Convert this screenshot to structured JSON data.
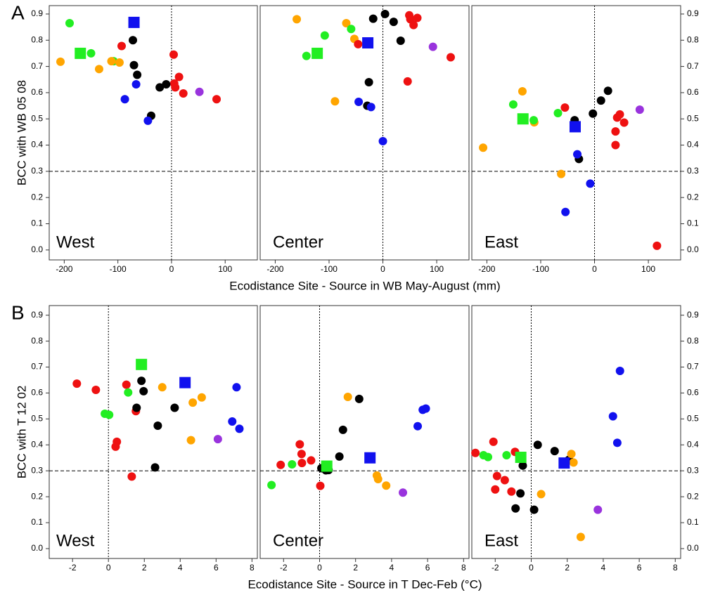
{
  "rows": [
    {
      "label": "A",
      "y_label": "BCC with WB 05 08",
      "x_label": "Ecodistance Site - Source in WB May-August (mm)"
    },
    {
      "label": "B",
      "y_label": "BCC with T 12 02",
      "x_label": "Ecodistance Site - Source in T Dec-Feb (°C)"
    }
  ],
  "chart_data": [
    {
      "type": "scatter",
      "title": "West",
      "xlim": [
        -228,
        160
      ],
      "ylim": [
        -0.038,
        0.932
      ],
      "xticks": [
        -200,
        -100,
        0,
        100
      ],
      "yticks": [
        {
          "value": 0,
          "label": "0.0"
        },
        0.1,
        0.2,
        0.3,
        0.4,
        0.5,
        0.6,
        0.7,
        0.8,
        0.9
      ],
      "hline": 0.3,
      "vline": 0,
      "series": [
        {
          "color": "#22ee22",
          "marker": "circle",
          "x": [
            -190,
            -150,
            -108
          ],
          "y": [
            0.865,
            0.75,
            0.72
          ]
        },
        {
          "color": "#ffa500",
          "marker": "circle",
          "x": [
            -207,
            -135,
            -112,
            -97
          ],
          "y": [
            0.718,
            0.69,
            0.72,
            0.715
          ]
        },
        {
          "color": "#ee1111",
          "marker": "circle",
          "x": [
            -93,
            4,
            5,
            7,
            14,
            22,
            84
          ],
          "y": [
            0.778,
            0.745,
            0.635,
            0.62,
            0.66,
            0.597,
            0.575
          ]
        },
        {
          "color": "#000000",
          "marker": "circle",
          "x": [
            -72,
            -70,
            -64,
            -22,
            -10,
            -38
          ],
          "y": [
            0.8,
            0.705,
            0.668,
            0.62,
            0.632,
            0.512
          ]
        },
        {
          "color": "#1111ee",
          "marker": "circle",
          "x": [
            -66,
            -87,
            -44
          ],
          "y": [
            0.632,
            0.575,
            0.493
          ]
        },
        {
          "color": "#9933dd",
          "marker": "circle",
          "x": [
            52
          ],
          "y": [
            0.603
          ]
        },
        {
          "color": "#22ee22",
          "marker": "square",
          "x": [
            -170
          ],
          "y": [
            0.75
          ]
        },
        {
          "color": "#1111ee",
          "marker": "square",
          "x": [
            -70
          ],
          "y": [
            0.868
          ]
        }
      ]
    },
    {
      "type": "scatter",
      "title": "Center",
      "xlim": [
        -228,
        160
      ],
      "ylim": [
        -0.038,
        0.932
      ],
      "xticks": [
        -200,
        -100,
        0,
        100
      ],
      "hline": 0.3,
      "vline": 0,
      "series": [
        {
          "color": "#ffa500",
          "marker": "circle",
          "x": [
            -160,
            -68,
            -53,
            -89
          ],
          "y": [
            0.88,
            0.865,
            0.805,
            0.567
          ]
        },
        {
          "color": "#22ee22",
          "marker": "circle",
          "x": [
            -142,
            -108,
            -59
          ],
          "y": [
            0.74,
            0.818,
            0.843
          ]
        },
        {
          "color": "#ee1111",
          "marker": "circle",
          "x": [
            -46,
            49,
            51,
            57,
            64,
            46,
            126
          ],
          "y": [
            0.785,
            0.895,
            0.88,
            0.858,
            0.885,
            0.643,
            0.735
          ]
        },
        {
          "color": "#000000",
          "marker": "circle",
          "x": [
            4,
            -18,
            20,
            33,
            -26,
            -29
          ],
          "y": [
            0.9,
            0.882,
            0.87,
            0.798,
            0.64,
            0.55
          ]
        },
        {
          "color": "#1111ee",
          "marker": "circle",
          "x": [
            -45,
            -22,
            0
          ],
          "y": [
            0.565,
            0.545,
            0.415
          ]
        },
        {
          "color": "#9933dd",
          "marker": "circle",
          "x": [
            93
          ],
          "y": [
            0.775
          ]
        },
        {
          "color": "#22ee22",
          "marker": "square",
          "x": [
            -122
          ],
          "y": [
            0.75
          ]
        },
        {
          "color": "#1111ee",
          "marker": "square",
          "x": [
            -28
          ],
          "y": [
            0.79
          ]
        }
      ]
    },
    {
      "type": "scatter",
      "title": "East",
      "xlim": [
        -228,
        160
      ],
      "ylim": [
        -0.038,
        0.932
      ],
      "xticks": [
        -200,
        -100,
        0,
        100
      ],
      "yticks": [
        {
          "value": 0,
          "label": "0.0"
        },
        0.1,
        0.2,
        0.3,
        0.4,
        0.5,
        0.6,
        0.7,
        0.8,
        0.9
      ],
      "hline": 0.3,
      "vline": 0,
      "series": [
        {
          "color": "#ffa500",
          "marker": "circle",
          "x": [
            -207,
            -134,
            -112,
            -62
          ],
          "y": [
            0.39,
            0.605,
            0.487,
            0.29
          ]
        },
        {
          "color": "#22ee22",
          "marker": "circle",
          "x": [
            -151,
            -68,
            -113
          ],
          "y": [
            0.555,
            0.522,
            0.495
          ]
        },
        {
          "color": "#ee1111",
          "marker": "circle",
          "x": [
            -55,
            39,
            42,
            47,
            55,
            39,
            116
          ],
          "y": [
            0.543,
            0.452,
            0.505,
            0.517,
            0.486,
            0.4,
            0.016
          ]
        },
        {
          "color": "#000000",
          "marker": "circle",
          "x": [
            -37,
            -3,
            12,
            25,
            -29
          ],
          "y": [
            0.495,
            0.52,
            0.57,
            0.607,
            0.347
          ]
        },
        {
          "color": "#1111ee",
          "marker": "circle",
          "x": [
            -32,
            -8,
            -54
          ],
          "y": [
            0.365,
            0.253,
            0.145
          ]
        },
        {
          "color": "#9933dd",
          "marker": "circle",
          "x": [
            84
          ],
          "y": [
            0.535
          ]
        },
        {
          "color": "#22ee22",
          "marker": "square",
          "x": [
            -133
          ],
          "y": [
            0.5
          ]
        },
        {
          "color": "#1111ee",
          "marker": "square",
          "x": [
            -36
          ],
          "y": [
            0.47
          ]
        }
      ]
    },
    {
      "type": "scatter",
      "title": "West",
      "xlim": [
        -3.3,
        8.3
      ],
      "ylim": [
        -0.038,
        0.937
      ],
      "xticks": [
        -2,
        0,
        2,
        4,
        6,
        8
      ],
      "yticks": [
        {
          "value": 0,
          "label": "0.0"
        },
        0.1,
        0.2,
        0.3,
        0.4,
        0.5,
        0.6,
        0.7,
        0.8,
        0.9
      ],
      "hline": 0.3,
      "vline": 0,
      "series": [
        {
          "color": "#ee1111",
          "marker": "circle",
          "x": [
            -1.76,
            -0.7,
            1.0,
            1.53,
            0.47,
            0.4,
            1.3
          ],
          "y": [
            0.636,
            0.612,
            0.632,
            0.53,
            0.412,
            0.393,
            0.278
          ]
        },
        {
          "color": "#22ee22",
          "marker": "circle",
          "x": [
            -0.2,
            0.04,
            1.1
          ],
          "y": [
            0.52,
            0.516,
            0.602
          ]
        },
        {
          "color": "#000000",
          "marker": "circle",
          "x": [
            1.84,
            1.96,
            1.57,
            3.69,
            2.75,
            2.6
          ],
          "y": [
            0.647,
            0.607,
            0.543,
            0.543,
            0.474,
            0.313
          ]
        },
        {
          "color": "#ffa500",
          "marker": "circle",
          "x": [
            3.0,
            5.2,
            4.7,
            4.6
          ],
          "y": [
            0.622,
            0.583,
            0.563,
            0.418
          ]
        },
        {
          "color": "#1111ee",
          "marker": "circle",
          "x": [
            7.14,
            7.3,
            6.9
          ],
          "y": [
            0.622,
            0.462,
            0.49
          ]
        },
        {
          "color": "#9933dd",
          "marker": "circle",
          "x": [
            6.1
          ],
          "y": [
            0.422
          ]
        },
        {
          "color": "#22ee22",
          "marker": "square",
          "x": [
            1.84
          ],
          "y": [
            0.71
          ]
        },
        {
          "color": "#1111ee",
          "marker": "square",
          "x": [
            4.27
          ],
          "y": [
            0.64
          ]
        }
      ]
    },
    {
      "type": "scatter",
      "title": "Center",
      "xlim": [
        -3.3,
        8.3
      ],
      "ylim": [
        -0.038,
        0.937
      ],
      "xticks": [
        -2,
        0,
        2,
        4,
        6,
        8
      ],
      "hline": 0.3,
      "vline": 0,
      "series": [
        {
          "color": "#ee1111",
          "marker": "circle",
          "x": [
            -2.16,
            -1.1,
            -1.0,
            -0.98,
            -0.47,
            0.04
          ],
          "y": [
            0.323,
            0.402,
            0.365,
            0.33,
            0.34,
            0.242
          ]
        },
        {
          "color": "#22ee22",
          "marker": "circle",
          "x": [
            -1.53,
            -2.67
          ],
          "y": [
            0.325,
            0.245
          ]
        },
        {
          "color": "#000000",
          "marker": "circle",
          "x": [
            0.1,
            0.35,
            0.5,
            1.1,
            1.3,
            2.2
          ],
          "y": [
            0.31,
            0.302,
            0.303,
            0.355,
            0.458,
            0.577
          ]
        },
        {
          "color": "#ffa500",
          "marker": "circle",
          "x": [
            1.57,
            3.18,
            3.25,
            3.7
          ],
          "y": [
            0.585,
            0.282,
            0.268,
            0.243
          ]
        },
        {
          "color": "#1111ee",
          "marker": "circle",
          "x": [
            5.45,
            5.73,
            5.9
          ],
          "y": [
            0.472,
            0.535,
            0.54
          ]
        },
        {
          "color": "#9933dd",
          "marker": "circle",
          "x": [
            4.63
          ],
          "y": [
            0.216
          ]
        },
        {
          "color": "#22ee22",
          "marker": "square",
          "x": [
            0.4
          ],
          "y": [
            0.318
          ]
        },
        {
          "color": "#1111ee",
          "marker": "square",
          "x": [
            2.8
          ],
          "y": [
            0.35
          ]
        }
      ]
    },
    {
      "type": "scatter",
      "title": "East",
      "xlim": [
        -3.3,
        8.3
      ],
      "ylim": [
        -0.038,
        0.937
      ],
      "xticks": [
        -2,
        0,
        2,
        4,
        6,
        8
      ],
      "yticks": [
        {
          "value": 0,
          "label": "0.0"
        },
        0.1,
        0.2,
        0.3,
        0.4,
        0.5,
        0.6,
        0.7,
        0.8,
        0.9
      ],
      "hline": 0.3,
      "vline": 0,
      "series": [
        {
          "color": "#ee1111",
          "marker": "circle",
          "x": [
            -3.1,
            -2.1,
            -1.9,
            -2.0,
            -1.47,
            -1.1,
            -0.9
          ],
          "y": [
            0.369,
            0.412,
            0.28,
            0.228,
            0.264,
            0.22,
            0.373
          ]
        },
        {
          "color": "#22ee22",
          "marker": "circle",
          "x": [
            -2.65,
            -2.4,
            -1.37
          ],
          "y": [
            0.36,
            0.353,
            0.36
          ]
        },
        {
          "color": "#000000",
          "marker": "circle",
          "x": [
            -0.47,
            0.36,
            1.3,
            -0.87,
            -0.6,
            0.16,
            2.1
          ],
          "y": [
            0.32,
            0.4,
            0.376,
            0.155,
            0.213,
            0.15,
            0.343
          ]
        },
        {
          "color": "#ffa500",
          "marker": "circle",
          "x": [
            2.23,
            2.35,
            0.55,
            2.75
          ],
          "y": [
            0.365,
            0.332,
            0.21,
            0.045
          ]
        },
        {
          "color": "#1111ee",
          "marker": "circle",
          "x": [
            4.54,
            4.78,
            4.93
          ],
          "y": [
            0.51,
            0.408,
            0.685
          ]
        },
        {
          "color": "#9933dd",
          "marker": "circle",
          "x": [
            3.7
          ],
          "y": [
            0.15
          ]
        },
        {
          "color": "#22ee22",
          "marker": "square",
          "x": [
            -0.58
          ],
          "y": [
            0.352
          ]
        },
        {
          "color": "#1111ee",
          "marker": "square",
          "x": [
            1.83
          ],
          "y": [
            0.33
          ]
        }
      ]
    }
  ]
}
